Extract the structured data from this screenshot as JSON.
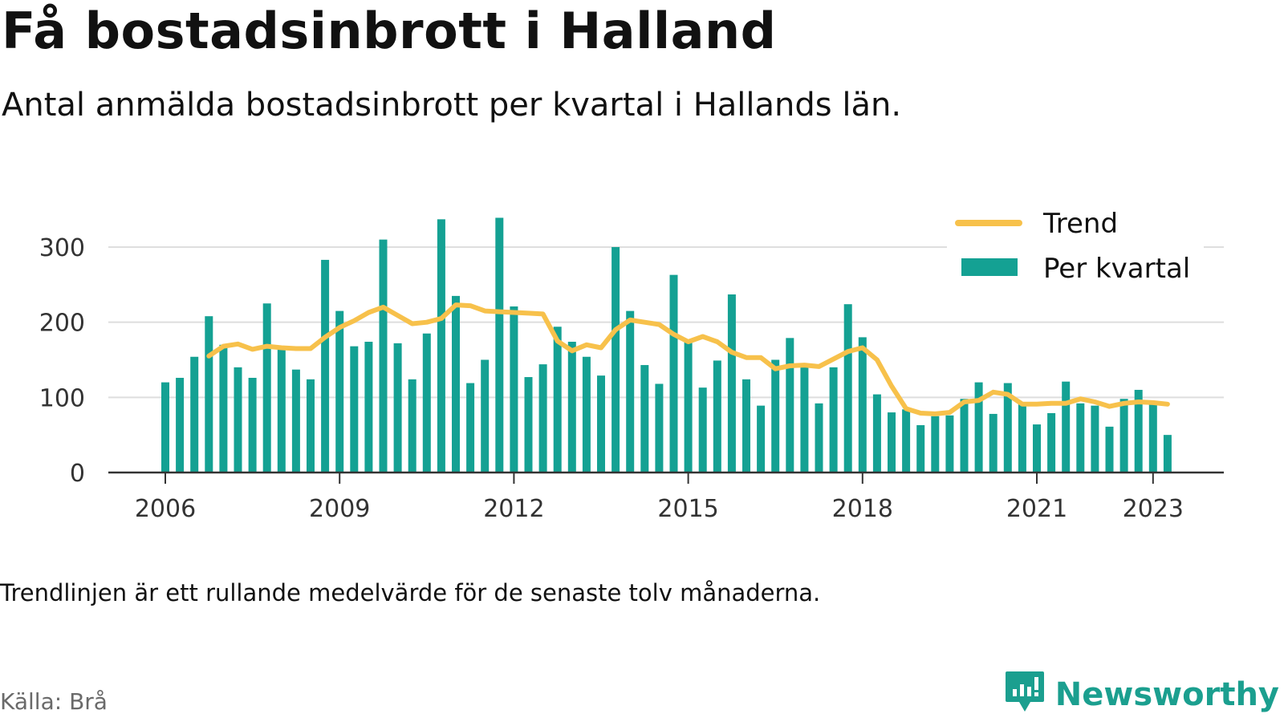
{
  "header": {
    "title": "Få bostadsinbrott i Halland",
    "subtitle": "Antal anmälda bostadsinbrott per kvartal i Hallands län."
  },
  "footer": {
    "note": "Trendlinjen är ett rullande medelvärde för de senaste tolv månaderna.",
    "source": "Källa: Brå",
    "brand": "Newsworthy"
  },
  "colors": {
    "bars": "#14a193",
    "trend": "#f7c14b",
    "brand": "#1b9f8f"
  },
  "icons": {
    "brand_logo": "bar-chart-bubble-icon"
  },
  "chart_data": {
    "type": "bar",
    "title": "Få bostadsinbrott i Halland",
    "subtitle": "Antal anmälda bostadsinbrott per kvartal i Hallands län.",
    "xlabel": "",
    "ylabel": "",
    "ylim": [
      0,
      350
    ],
    "yticks": [
      0,
      100,
      200,
      300
    ],
    "xticks": [
      "2006",
      "2009",
      "2012",
      "2015",
      "2018",
      "2021",
      "2023"
    ],
    "grid": true,
    "legend_position": "top-right",
    "categories": [
      "2006 Q1",
      "2006 Q2",
      "2006 Q3",
      "2006 Q4",
      "2007 Q1",
      "2007 Q2",
      "2007 Q3",
      "2007 Q4",
      "2008 Q1",
      "2008 Q2",
      "2008 Q3",
      "2008 Q4",
      "2009 Q1",
      "2009 Q2",
      "2009 Q3",
      "2009 Q4",
      "2010 Q1",
      "2010 Q2",
      "2010 Q3",
      "2010 Q4",
      "2011 Q1",
      "2011 Q2",
      "2011 Q3",
      "2011 Q4",
      "2012 Q1",
      "2012 Q2",
      "2012 Q3",
      "2012 Q4",
      "2013 Q1",
      "2013 Q2",
      "2013 Q3",
      "2013 Q4",
      "2014 Q1",
      "2014 Q2",
      "2014 Q3",
      "2014 Q4",
      "2015 Q1",
      "2015 Q2",
      "2015 Q3",
      "2015 Q4",
      "2016 Q1",
      "2016 Q2",
      "2016 Q3",
      "2016 Q4",
      "2017 Q1",
      "2017 Q2",
      "2017 Q3",
      "2017 Q4",
      "2018 Q1",
      "2018 Q2",
      "2018 Q3",
      "2018 Q4",
      "2019 Q1",
      "2019 Q2",
      "2019 Q3",
      "2019 Q4",
      "2020 Q1",
      "2020 Q2",
      "2020 Q3",
      "2020 Q4",
      "2021 Q1",
      "2021 Q2",
      "2021 Q3",
      "2021 Q4",
      "2022 Q1",
      "2022 Q2",
      "2022 Q3",
      "2022 Q4",
      "2023 Q1",
      "2023 Q2"
    ],
    "series": [
      {
        "name": "Per kvartal",
        "type": "bar",
        "values": [
          120,
          126,
          154,
          208,
          170,
          140,
          126,
          225,
          164,
          137,
          124,
          283,
          215,
          168,
          174,
          310,
          172,
          124,
          185,
          337,
          235,
          119,
          150,
          339,
          221,
          127,
          144,
          194,
          174,
          154,
          129,
          300,
          215,
          143,
          118,
          263,
          177,
          113,
          149,
          237,
          124,
          89,
          150,
          179,
          141,
          92,
          140,
          224,
          180,
          104,
          80,
          84,
          63,
          75,
          76,
          98,
          120,
          78,
          119,
          92,
          64,
          79,
          121,
          92,
          89,
          61,
          98,
          110,
          94,
          50
        ]
      },
      {
        "name": "Trend",
        "type": "line",
        "values": [
          null,
          null,
          null,
          155,
          168,
          171,
          164,
          168,
          166,
          165,
          165,
          180,
          193,
          202,
          213,
          220,
          209,
          198,
          200,
          205,
          223,
          222,
          215,
          214,
          213,
          212,
          211,
          175,
          162,
          170,
          166,
          190,
          203,
          200,
          197,
          184,
          174,
          181,
          174,
          160,
          153,
          153,
          138,
          142,
          143,
          141,
          151,
          161,
          166,
          150,
          115,
          85,
          79,
          78,
          80,
          94,
          96,
          107,
          104,
          91,
          91,
          92,
          92,
          98,
          94,
          88,
          92,
          94,
          93,
          91
        ]
      }
    ]
  }
}
